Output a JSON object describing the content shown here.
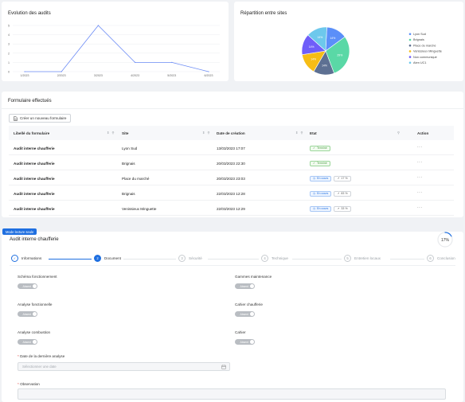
{
  "evolution": {
    "title": "Evolution des audits",
    "chart_data": {
      "type": "line",
      "title": "Evolution des audits",
      "x": [
        "1/2023",
        "2/2023",
        "3/2023",
        "4/2023",
        "5/2023",
        "6/2023"
      ],
      "yticks": [
        0,
        1,
        2,
        3,
        4,
        5
      ],
      "ylim": [
        0,
        5
      ],
      "series": [
        {
          "values": [
            0,
            0,
            5,
            1,
            1,
            0
          ]
        }
      ],
      "grid": true
    }
  },
  "repartition": {
    "title": "Répartition entre sites",
    "chart_data": {
      "type": "pie",
      "title": "Répartition entre sites",
      "series": [
        {
          "labels": [
            "Lyon Sud",
            "Brignais",
            "Place du marché",
            "Venissieux Minguette",
            "Non communiqué",
            "Aten UC1"
          ],
          "values": [
            14,
            29,
            14,
            14,
            14,
            14
          ],
          "display_labels": [
            "14%",
            "29%",
            "14%",
            "14%",
            "14%",
            "14%"
          ],
          "colors": [
            "#5b8ff9",
            "#5ad8a6",
            "#5d7092",
            "#f6bd16",
            "#6f5ef9",
            "#6dc8ec"
          ]
        }
      ],
      "legend": "right"
    }
  },
  "forms": {
    "title": "Formulaire effectués",
    "create_button": "Créer un nouveau formulaire",
    "columns": [
      "Libellé du formulaire",
      "Site",
      "Date de création",
      "Etat",
      "Action"
    ],
    "rows": [
      {
        "label": "Audit interne chaufferie",
        "site": "Lyon Sud",
        "date": "13/03/2023 17:07",
        "status": "Terminé",
        "status_kind": "done",
        "progress": ""
      },
      {
        "label": "Audit interne chaufferie",
        "site": "Brignais",
        "date": "20/03/2023 22:30",
        "status": "Terminé",
        "status_kind": "done",
        "progress": ""
      },
      {
        "label": "Audit interne chaufferie",
        "site": "Place du marché",
        "date": "20/03/2023 23:03",
        "status": "En cours",
        "status_kind": "progress",
        "progress": "17 %"
      },
      {
        "label": "Audit interne chaufferie",
        "site": "Brignais",
        "date": "22/03/2023 12:28",
        "status": "En cours",
        "status_kind": "progress",
        "progress": "83 %"
      },
      {
        "label": "Audit interne chaufferie",
        "site": "Venissieux Minguette",
        "date": "22/03/2023 12:29",
        "status": "En cours",
        "status_kind": "progress",
        "progress": "33 %"
      }
    ],
    "action_glyph": "···"
  },
  "detail": {
    "mode_badge": "Mode lecture seule",
    "title": "Audit interne chaufferie",
    "progress_label": "17%",
    "progress_value": 0.17,
    "steps": [
      {
        "num": "✓",
        "label": "Informations",
        "state": "done"
      },
      {
        "num": "2",
        "label": "Document",
        "state": "active"
      },
      {
        "num": "3",
        "label": "Sécurité",
        "state": "todo"
      },
      {
        "num": "4",
        "label": "Technique",
        "state": "todo"
      },
      {
        "num": "5",
        "label": "Entretien locaux",
        "state": "todo"
      },
      {
        "num": "6",
        "label": "Conclusion",
        "state": "todo"
      }
    ],
    "fields": {
      "schema": "Schéma fonctionnement",
      "gammes": "Gammes maintenance",
      "analyse_fonc": "Analyse fonctionnelle",
      "cahier_chauff": "Cahier chaufferie",
      "analyse_comb": "Analyse combustion",
      "cahier": "Cahier"
    },
    "toggle_text": "Absent",
    "date_label": "Date de la dernière analyse",
    "date_placeholder": "Sélectionner une date",
    "observation_label": "Observation"
  },
  "colors": {
    "accent": "#1f6fe0",
    "line": "#6b8bf5",
    "status_done": "#52a04a"
  }
}
